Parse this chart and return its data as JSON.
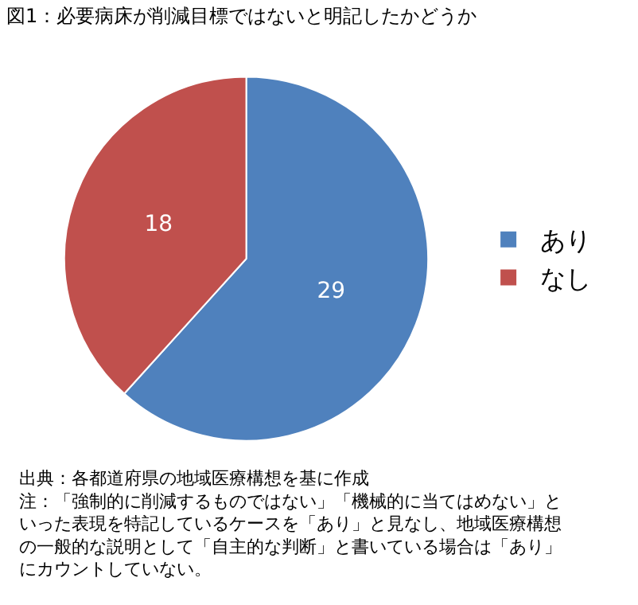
{
  "chart_data": {
    "type": "pie",
    "title": "図1：必要病床が削減目標ではないと明記したかどうか",
    "categories": [
      "あり",
      "なし"
    ],
    "values": [
      29,
      18
    ],
    "colors": [
      "#4f81bd",
      "#c0504d"
    ],
    "data_labels": true,
    "legend": "right",
    "annotations": [
      "出典：各都道府県の地域医療構想を基に作成",
      "注：「強制的に削減するものではない」「機械的に当てはめない」といった表現を特記しているケースを「あり」と見なし、地域医療構想の一般的な説明として「自主的な判断」と書いている場合は「あり」にカウントしていない。"
    ]
  }
}
